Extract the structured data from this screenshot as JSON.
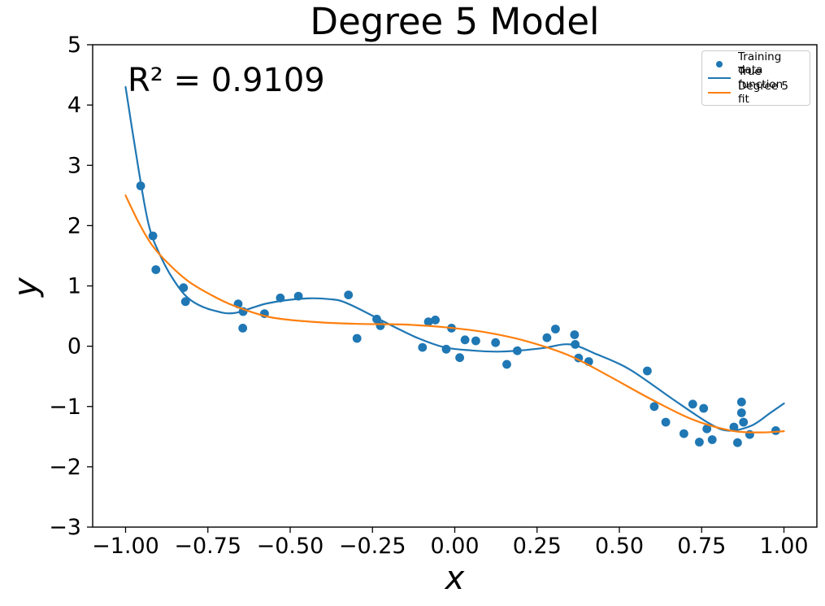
{
  "chart_data": {
    "type": "scatter",
    "title": "Degree 5 Model",
    "annotation": "R² = 0.9109",
    "xlabel": "x",
    "ylabel": "y",
    "xlim": [
      -1.1,
      1.1
    ],
    "ylim": [
      -3,
      5
    ],
    "grid": false,
    "axis_color": "#000000",
    "xticks": {
      "values": [
        -1.0,
        -0.75,
        -0.5,
        -0.25,
        0.0,
        0.25,
        0.5,
        0.75,
        1.0
      ],
      "labels": [
        "−1.00",
        "−0.75",
        "−0.50",
        "−0.25",
        "0.00",
        "0.25",
        "0.50",
        "0.75",
        "1.00"
      ]
    },
    "yticks": {
      "values": [
        -3,
        -2,
        -1,
        0,
        1,
        2,
        3,
        4,
        5
      ],
      "labels": [
        "−3",
        "−2",
        "−1",
        "0",
        "1",
        "2",
        "3",
        "4",
        "5"
      ]
    },
    "legend": {
      "position": "upper right"
    },
    "series": [
      {
        "name": "Training data",
        "kind": "scatter",
        "color": "#1f77b4",
        "marker_radius": 5.4,
        "points": [
          [
            -0.954,
            2.66
          ],
          [
            -0.917,
            1.83
          ],
          [
            -0.908,
            1.27
          ],
          [
            -0.824,
            0.97
          ],
          [
            -0.818,
            0.74
          ],
          [
            -0.658,
            0.7
          ],
          [
            -0.643,
            0.575
          ],
          [
            -0.644,
            0.3
          ],
          [
            -0.578,
            0.54
          ],
          [
            -0.53,
            0.8
          ],
          [
            -0.475,
            0.83
          ],
          [
            -0.323,
            0.85
          ],
          [
            -0.297,
            0.13
          ],
          [
            -0.237,
            0.45
          ],
          [
            -0.226,
            0.34
          ],
          [
            -0.098,
            -0.02
          ],
          [
            -0.08,
            0.405
          ],
          [
            -0.059,
            0.435
          ],
          [
            -0.026,
            -0.05
          ],
          [
            -0.01,
            0.3
          ],
          [
            0.015,
            -0.19
          ],
          [
            0.031,
            0.105
          ],
          [
            0.064,
            0.09
          ],
          [
            0.124,
            0.06
          ],
          [
            0.158,
            -0.3
          ],
          [
            0.19,
            -0.075
          ],
          [
            0.28,
            0.14
          ],
          [
            0.306,
            0.285
          ],
          [
            0.364,
            0.19
          ],
          [
            0.366,
            0.03
          ],
          [
            0.376,
            -0.195
          ],
          [
            0.407,
            -0.255
          ],
          [
            0.585,
            -0.41
          ],
          [
            0.606,
            -1.0
          ],
          [
            0.641,
            -1.26
          ],
          [
            0.696,
            -1.45
          ],
          [
            0.723,
            -0.96
          ],
          [
            0.743,
            -1.59
          ],
          [
            0.756,
            -1.03
          ],
          [
            0.766,
            -1.37
          ],
          [
            0.782,
            -1.55
          ],
          [
            0.848,
            -1.34
          ],
          [
            0.859,
            -1.6
          ],
          [
            0.871,
            -0.925
          ],
          [
            0.871,
            -1.105
          ],
          [
            0.877,
            -1.26
          ],
          [
            0.896,
            -1.465
          ],
          [
            0.975,
            -1.4
          ]
        ]
      },
      {
        "name": "True function",
        "kind": "line",
        "color": "#1f77b4",
        "line_width": 2.2,
        "points": [
          [
            -1.0,
            4.3
          ],
          [
            -0.97,
            3.25
          ],
          [
            -0.94,
            2.28
          ],
          [
            -0.92,
            1.83
          ],
          [
            -0.89,
            1.45
          ],
          [
            -0.86,
            1.15
          ],
          [
            -0.82,
            0.85
          ],
          [
            -0.78,
            0.69
          ],
          [
            -0.73,
            0.59
          ],
          [
            -0.67,
            0.55
          ],
          [
            -0.57,
            0.71
          ],
          [
            -0.46,
            0.79
          ],
          [
            -0.38,
            0.78
          ],
          [
            -0.33,
            0.72
          ],
          [
            -0.23,
            0.45
          ],
          [
            -0.18,
            0.31
          ],
          [
            -0.11,
            0.13
          ],
          [
            -0.03,
            -0.02
          ],
          [
            0.05,
            -0.07
          ],
          [
            0.13,
            -0.09
          ],
          [
            0.2,
            -0.07
          ],
          [
            0.27,
            -0.03
          ],
          [
            0.35,
            0.03
          ],
          [
            0.43,
            -0.13
          ],
          [
            0.53,
            -0.38
          ],
          [
            0.66,
            -0.87
          ],
          [
            0.77,
            -1.27
          ],
          [
            0.83,
            -1.4
          ],
          [
            0.9,
            -1.32
          ],
          [
            0.96,
            -1.1
          ],
          [
            1.0,
            -0.95
          ]
        ]
      },
      {
        "name": "Degree 5 fit",
        "kind": "line",
        "color": "#ff7f0e",
        "line_width": 2.2,
        "points": [
          [
            -1.0,
            2.5
          ],
          [
            -0.96,
            2.05
          ],
          [
            -0.92,
            1.68
          ],
          [
            -0.87,
            1.37
          ],
          [
            -0.81,
            1.08
          ],
          [
            -0.74,
            0.85
          ],
          [
            -0.67,
            0.67
          ],
          [
            -0.56,
            0.48
          ],
          [
            -0.42,
            0.4
          ],
          [
            -0.29,
            0.37
          ],
          [
            -0.16,
            0.36
          ],
          [
            -0.03,
            0.315
          ],
          [
            0.1,
            0.225
          ],
          [
            0.22,
            0.08
          ],
          [
            0.35,
            -0.16
          ],
          [
            0.47,
            -0.5
          ],
          [
            0.59,
            -0.86
          ],
          [
            0.72,
            -1.21
          ],
          [
            0.84,
            -1.4
          ],
          [
            0.93,
            -1.43
          ],
          [
            1.0,
            -1.41
          ]
        ]
      }
    ]
  }
}
